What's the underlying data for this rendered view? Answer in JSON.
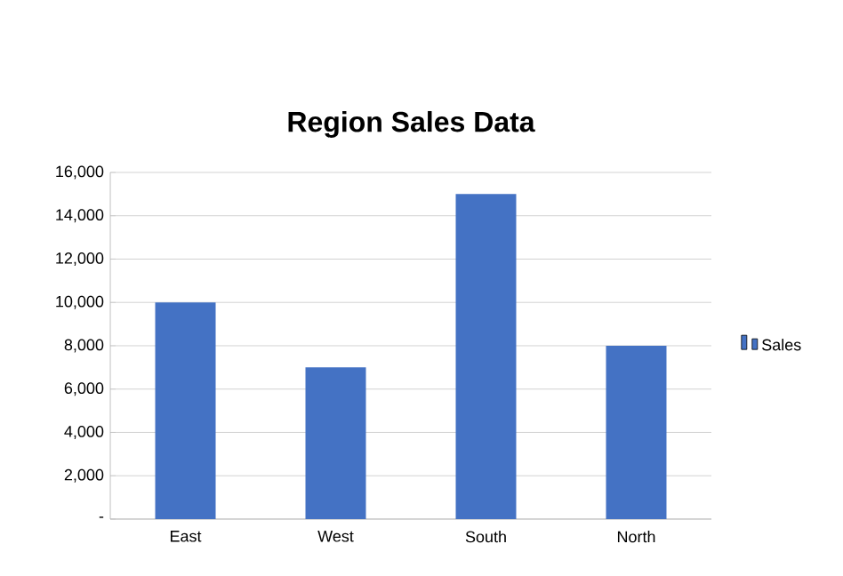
{
  "chart_data": {
    "type": "bar",
    "title": "Region Sales Data",
    "categories": [
      "East",
      "West",
      "South",
      "North"
    ],
    "series": [
      {
        "name": "Sales",
        "color": "#4472c4",
        "values": [
          10000,
          7000,
          15000,
          8000
        ]
      }
    ],
    "ylim": [
      0,
      16000
    ],
    "yticks": [
      {
        "value": 0,
        "label": "-"
      },
      {
        "value": 2000,
        "label": "2,000"
      },
      {
        "value": 4000,
        "label": "4,000"
      },
      {
        "value": 6000,
        "label": "6,000"
      },
      {
        "value": 8000,
        "label": "8,000"
      },
      {
        "value": 10000,
        "label": "10,000"
      },
      {
        "value": 12000,
        "label": "12,000"
      },
      {
        "value": 14000,
        "label": "14,000"
      },
      {
        "value": 16000,
        "label": "16,000"
      }
    ],
    "grid": "y",
    "legend": "right"
  }
}
